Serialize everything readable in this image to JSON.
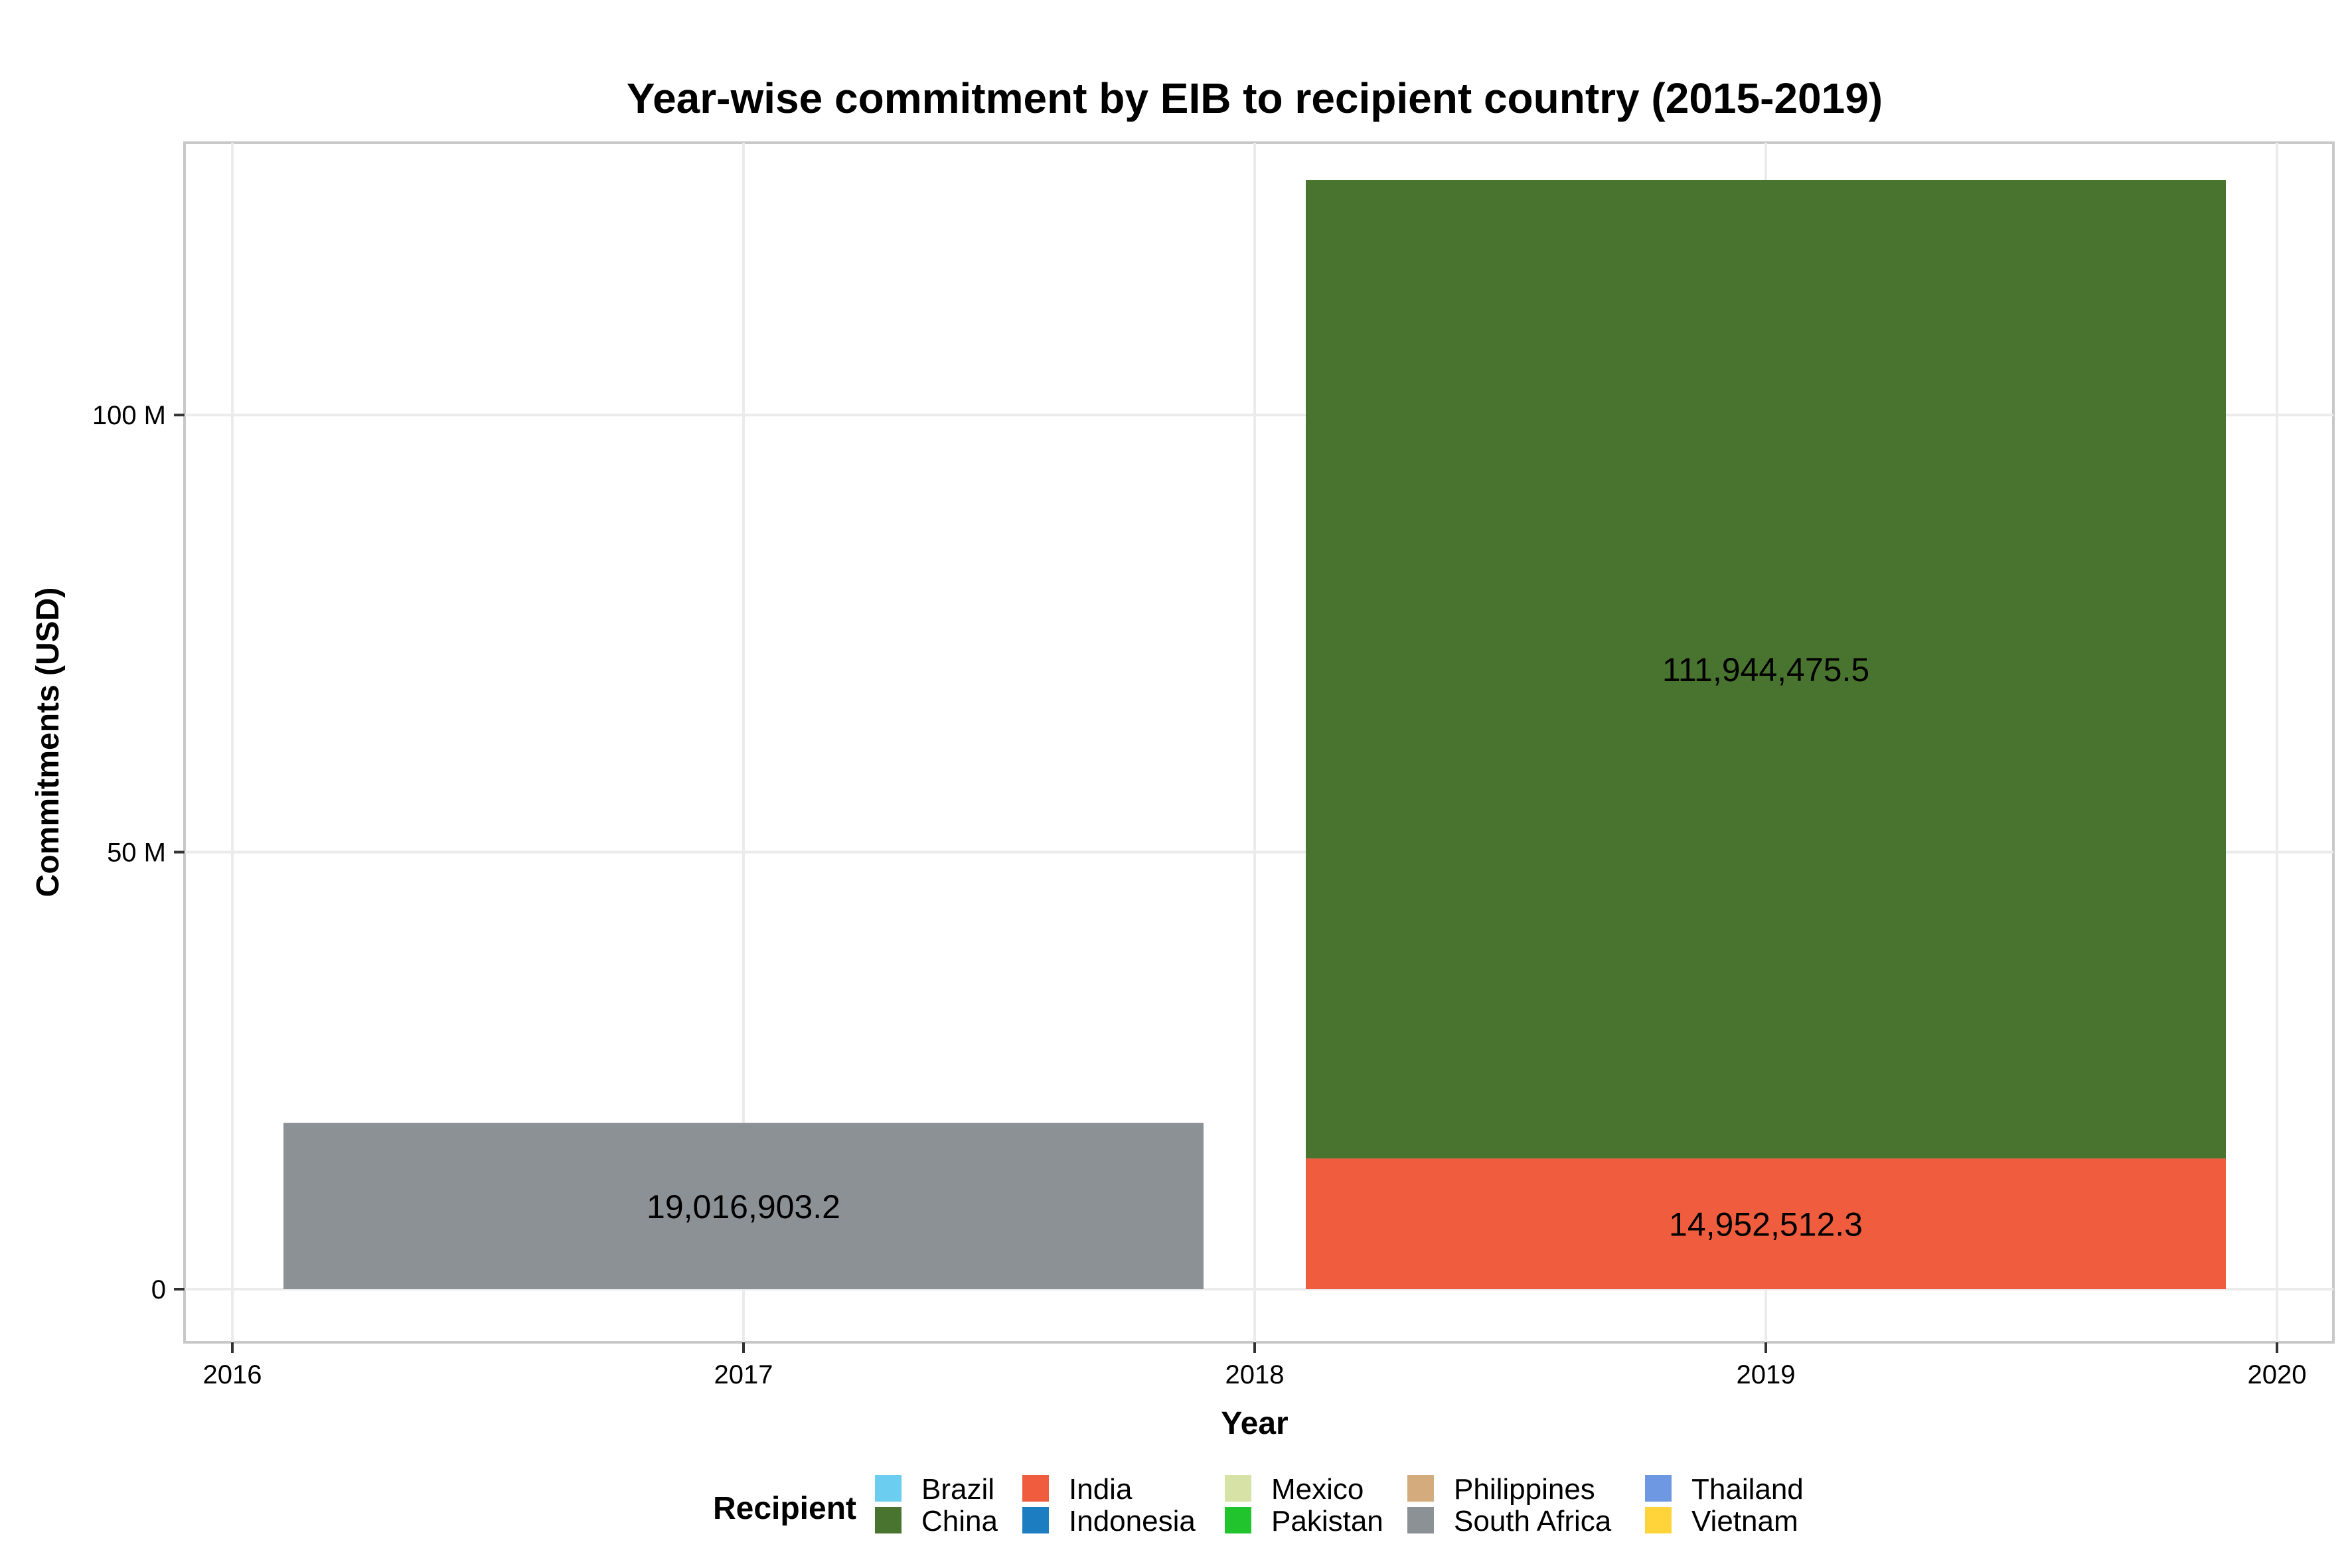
{
  "chart_data": {
    "type": "bar",
    "stacked": true,
    "title": "Year-wise commitment by EIB to recipient country (2015-2019)",
    "xlabel": "Year",
    "ylabel": "Commitments (USD)",
    "xlim": [
      2016,
      2020
    ],
    "ylim": [
      0,
      125000000
    ],
    "x_ticks": [
      2016,
      2017,
      2018,
      2019,
      2020
    ],
    "x_tick_labels": [
      "2016",
      "2017",
      "2018",
      "2019",
      "2020"
    ],
    "y_ticks": [
      0,
      50000000,
      100000000
    ],
    "y_tick_labels": [
      "0",
      "50 M",
      "100 M"
    ],
    "grid": true,
    "legend": {
      "title": "Recipient",
      "position": "bottom",
      "entries": [
        {
          "name": "Brazil",
          "color": "#6BCDF0"
        },
        {
          "name": "China",
          "color": "#48742F"
        },
        {
          "name": "India",
          "color": "#F05D3E"
        },
        {
          "name": "Indonesia",
          "color": "#1C7EC1"
        },
        {
          "name": "Mexico",
          "color": "#D7E3A6"
        },
        {
          "name": "Pakistan",
          "color": "#22C42E"
        },
        {
          "name": "Philippines",
          "color": "#D3AB7D"
        },
        {
          "name": "South Africa",
          "color": "#8C9196"
        },
        {
          "name": "Thailand",
          "color": "#6F98E2"
        },
        {
          "name": "Vietnam",
          "color": "#FFD43A"
        }
      ]
    },
    "bars": [
      {
        "year_start": 2016.1,
        "year_end": 2017.9,
        "segments": [
          {
            "recipient": "South Africa",
            "value": 19016903.2,
            "label": "19,016,903.2"
          }
        ]
      },
      {
        "year_start": 2018.1,
        "year_end": 2019.9,
        "segments": [
          {
            "recipient": "India",
            "value": 14952512.3,
            "label": "14,952,512.3"
          },
          {
            "recipient": "China",
            "value": 111944475.5,
            "label": "111,944,475.5"
          }
        ]
      }
    ]
  }
}
